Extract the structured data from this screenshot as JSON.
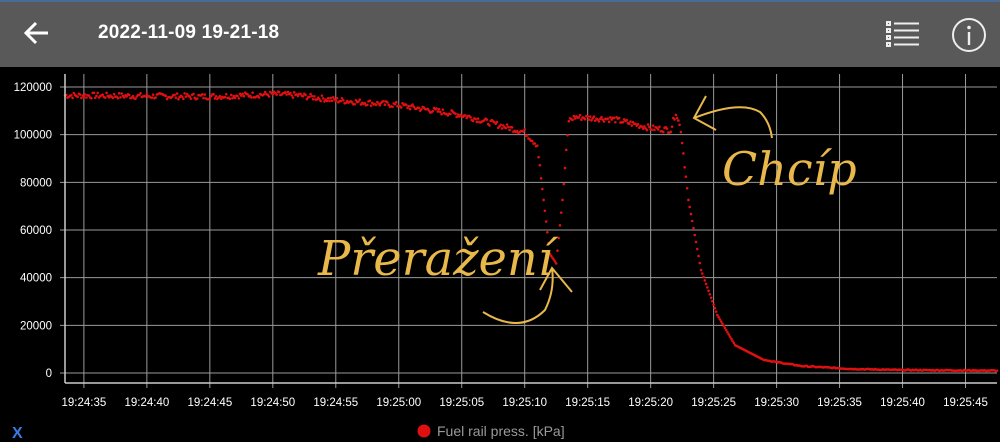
{
  "header": {
    "title": "2022-11-09 19-21-18",
    "back_icon": "arrow-left-icon",
    "list_icon": "list-icon",
    "info_icon": "info-icon"
  },
  "colors": {
    "series": "#e01010",
    "annotation": "#e8b84a",
    "grid": "#9a9a9a",
    "appbar": "#595959"
  },
  "chart_data": {
    "type": "scatter",
    "title": "",
    "xlabel": "",
    "ylabel": "",
    "grid": true,
    "legend_position": "bottom-center",
    "xlim": [
      "19:24:33.5",
      "19:25:47.5"
    ],
    "ylim": [
      0,
      120000
    ],
    "y_ticks": [
      "0",
      "20000",
      "40000",
      "60000",
      "80000",
      "100000",
      "120000"
    ],
    "x_ticks": [
      "19:24:35",
      "19:24:40",
      "19:24:45",
      "19:24:50",
      "19:24:55",
      "19:25:00",
      "19:25:05",
      "19:25:10",
      "19:25:15",
      "19:25:20",
      "19:25:25",
      "19:25:30",
      "19:25:35",
      "19:25:40",
      "19:25:45"
    ],
    "series": [
      {
        "name": "Fuel rail press. [kPa]",
        "x": [
          "19:24:33.5",
          "19:24:40",
          "19:24:45",
          "19:24:50",
          "19:24:52",
          "19:24:55",
          "19:25:00",
          "19:25:05",
          "19:25:10",
          "19:25:11",
          "19:25:11.5",
          "19:25:12",
          "19:25:12.5",
          "19:25:13",
          "19:25:13.5",
          "19:25:14",
          "19:25:17",
          "19:25:20",
          "19:25:21.6",
          "19:25:22",
          "19:25:22.4",
          "19:25:23",
          "19:25:24",
          "19:25:25.3",
          "19:25:26.7",
          "19:25:29",
          "19:25:32",
          "19:25:36",
          "19:25:40",
          "19:25:47.5"
        ],
        "y": [
          116500,
          116200,
          116000,
          117000,
          116500,
          114500,
          112400,
          108300,
          101100,
          95600,
          72600,
          50000,
          46000,
          72600,
          106000,
          107400,
          106500,
          102800,
          102000,
          109500,
          102000,
          72600,
          43200,
          24300,
          11700,
          5450,
          2900,
          1700,
          1250,
          1000
        ]
      }
    ],
    "annotations": [
      "Přeražení",
      "Chcíp"
    ],
    "bottom_left_icon": "x-axis-toggle-icon"
  }
}
